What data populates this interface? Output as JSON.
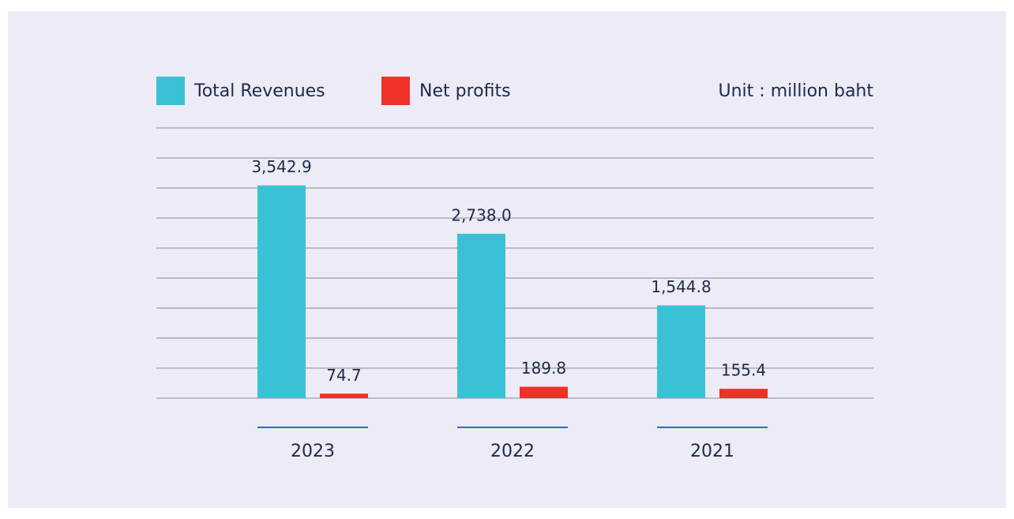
{
  "chart_data": {
    "type": "bar",
    "annotation": "Unit : million baht",
    "categories": [
      "2023",
      "2022",
      "2021"
    ],
    "series": [
      {
        "name": "Total Revenues",
        "color": "#3bc1d6",
        "values": [
          3542.9,
          2738.0,
          1544.8
        ],
        "value_labels": [
          "3,542.9",
          "2,738.0",
          "1,544.8"
        ]
      },
      {
        "name": "Net profits",
        "color": "#ee3129",
        "values": [
          74.7,
          189.8,
          155.4
        ]
      }
    ],
    "ylim": [
      0,
      4500
    ],
    "yticks": [
      0,
      500,
      1000,
      1500,
      2000,
      2500,
      3000,
      3500,
      4000,
      4500
    ],
    "grid": true
  }
}
